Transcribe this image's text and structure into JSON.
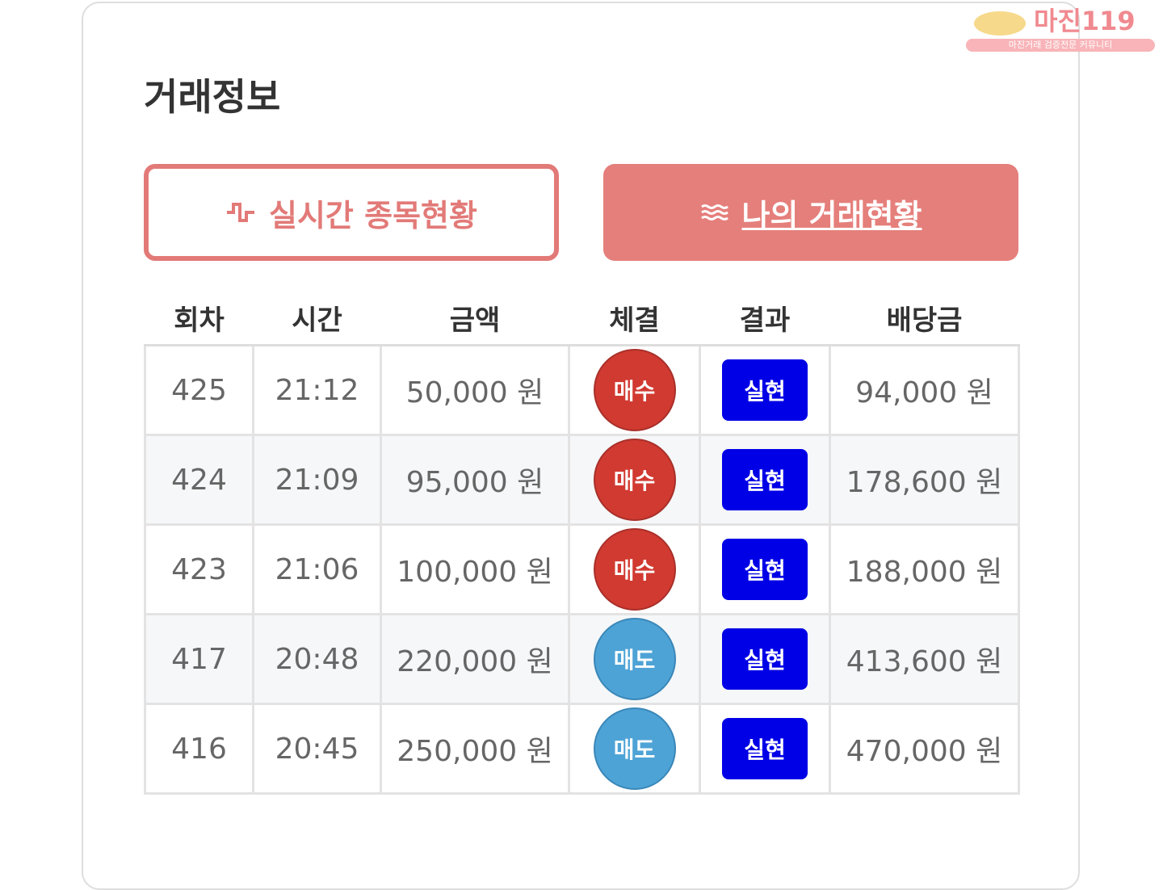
{
  "logo": {
    "name": "마진119",
    "tagline": "마진거래 검증전문 커뮤니티"
  },
  "title": "거래정보",
  "tabs": [
    {
      "label": "실시간 종목현황",
      "icon": "pulse-icon"
    },
    {
      "label": "나의 거래현황",
      "icon": "waves-icon"
    }
  ],
  "columns": [
    "회차",
    "시간",
    "금액",
    "체결",
    "결과",
    "배당금"
  ],
  "rows": [
    {
      "round": "425",
      "time": "21:12",
      "amount": "50,000 원",
      "side": "매수",
      "type": "buy",
      "result": "실현",
      "payout": "94,000 원"
    },
    {
      "round": "424",
      "time": "21:09",
      "amount": "95,000 원",
      "side": "매수",
      "type": "buy",
      "result": "실현",
      "payout": "178,600 원"
    },
    {
      "round": "423",
      "time": "21:06",
      "amount": "100,000 원",
      "side": "매수",
      "type": "buy",
      "result": "실현",
      "payout": "188,000 원"
    },
    {
      "round": "417",
      "time": "20:48",
      "amount": "220,000 원",
      "side": "매도",
      "type": "sell",
      "result": "실현",
      "payout": "413,600 원"
    },
    {
      "round": "416",
      "time": "20:45",
      "amount": "250,000 원",
      "side": "매도",
      "type": "sell",
      "result": "실현",
      "payout": "470,000 원"
    }
  ],
  "colors": {
    "buy": "#d13a31",
    "sell": "#4ea3d6",
    "result": "#0000e6",
    "accent": "#e57f7b"
  }
}
